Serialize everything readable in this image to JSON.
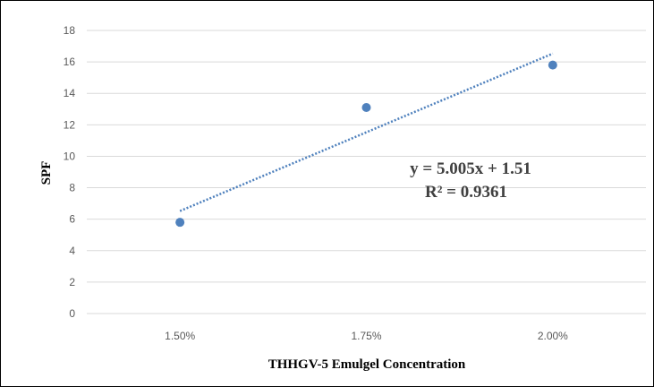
{
  "chart_data": {
    "type": "scatter",
    "title": "",
    "xlabel": "THHGV-5 Emulgel Concentration",
    "ylabel": "SPF",
    "categories": [
      "1.50%",
      "1.75%",
      "2.00%"
    ],
    "ylim": [
      0,
      18
    ],
    "y_ticks": [
      "0",
      "2",
      "4",
      "6",
      "8",
      "10",
      "12",
      "14",
      "16",
      "18"
    ],
    "grid": true,
    "series": [
      {
        "values": [
          5.8,
          13.1,
          15.8
        ]
      }
    ],
    "trendline": {
      "type": "linear",
      "equation": "y = 5.005x + 1.51",
      "r_squared": "R² = 0.9361",
      "start_value": 6.52,
      "end_value": 16.53
    },
    "colors": {
      "marker": "#4f81bd",
      "trendline": "#4f81bd",
      "grid": "#d9d9d9"
    }
  }
}
